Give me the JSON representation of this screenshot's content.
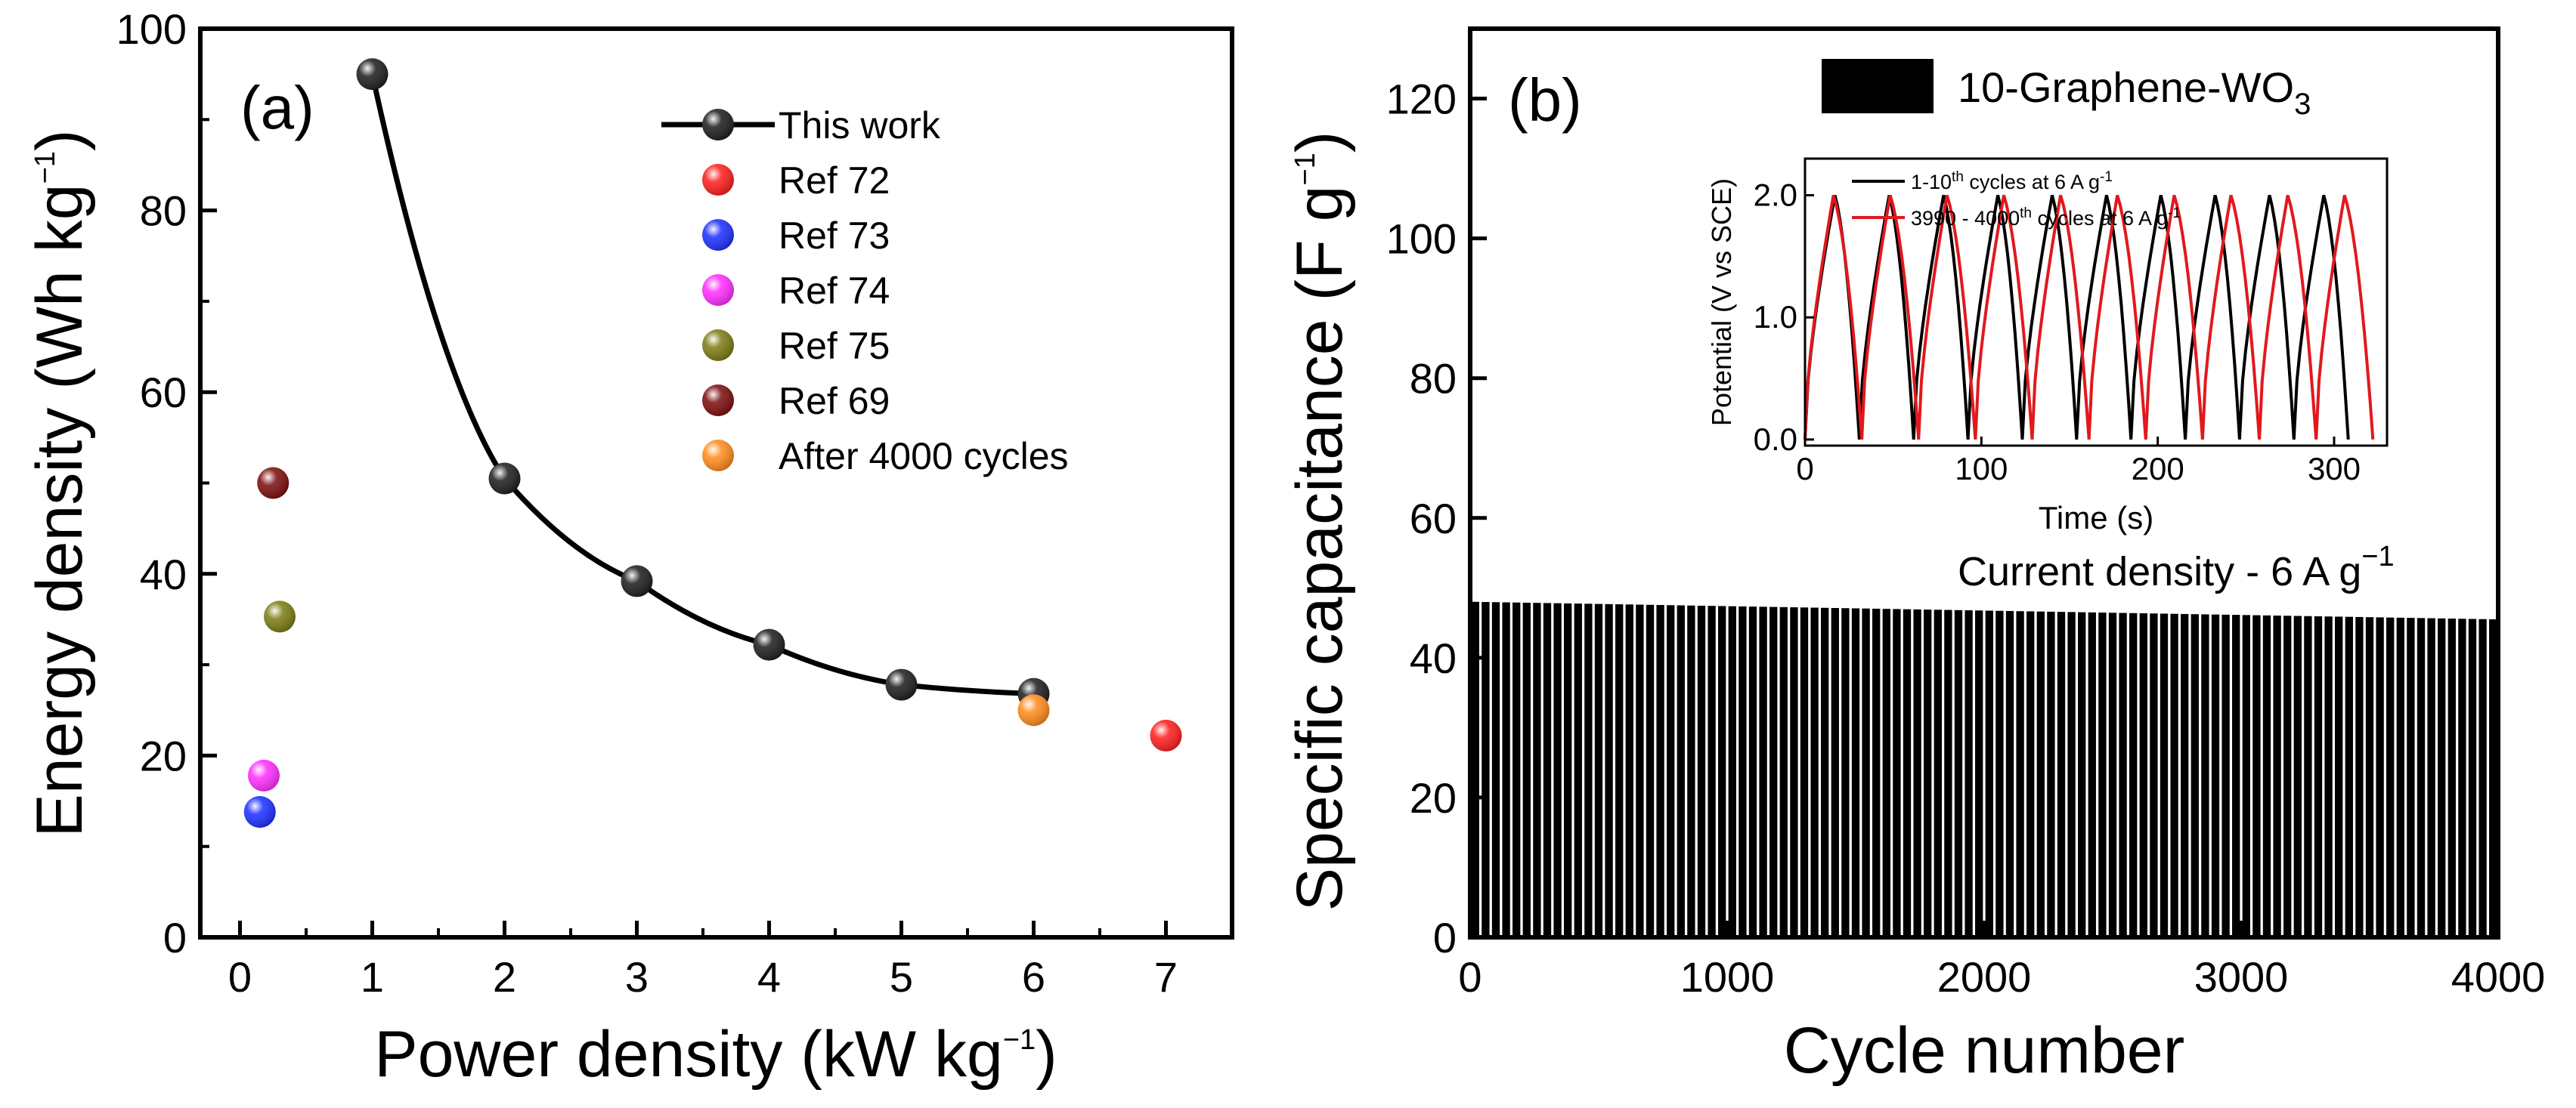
{
  "chart_data": [
    {
      "type": "scatter",
      "panel_label": "(a)",
      "xlabel": "Power density (kW kg",
      "xlabel_sup": "−1",
      "xlabel_end": ")",
      "ylabel": "Energy density (Wh kg",
      "ylabel_sup": "−1",
      "ylabel_end": ")",
      "xlim": [
        -0.3,
        7.5
      ],
      "ylim": [
        0,
        100
      ],
      "xticks": [
        "0",
        "1",
        "2",
        "3",
        "4",
        "5",
        "6",
        "7"
      ],
      "yticks": [
        "0",
        "20",
        "40",
        "60",
        "80",
        "100"
      ],
      "legend_position": "top-right",
      "series": [
        {
          "name": "This work",
          "color": "#1a1a1a",
          "line": true,
          "x": [
            1,
            2,
            3,
            4,
            5,
            6
          ],
          "y": [
            95,
            50.5,
            39.2,
            32.2,
            27.8,
            26.8
          ]
        },
        {
          "name": "Ref 72",
          "color": "#ff1a1a",
          "x": [
            7
          ],
          "y": [
            22.2
          ]
        },
        {
          "name": "Ref 73",
          "color": "#1a2cff",
          "x": [
            0.15
          ],
          "y": [
            13.8
          ]
        },
        {
          "name": "Ref 74",
          "color": "#ff2aff",
          "x": [
            0.18
          ],
          "y": [
            17.8
          ]
        },
        {
          "name": "Ref 75",
          "color": "#7a7a10",
          "x": [
            0.3
          ],
          "y": [
            35.3
          ]
        },
        {
          "name": "Ref 69",
          "color": "#7a0a0a",
          "x": [
            0.25
          ],
          "y": [
            50
          ]
        },
        {
          "name": "After 4000 cycles",
          "color": "#ff8a1a",
          "x": [
            6
          ],
          "y": [
            25
          ]
        }
      ]
    },
    {
      "type": "bar",
      "panel_label": "(b)",
      "xlabel": "Cycle number",
      "ylabel": "Specific capacitance (F g",
      "ylabel_sup": "−1",
      "ylabel_end": ")",
      "xlim": [
        0,
        4000
      ],
      "ylim": [
        0,
        130
      ],
      "xticks": [
        "0",
        "1000",
        "2000",
        "3000",
        "4000"
      ],
      "yticks": [
        "0",
        "20",
        "40",
        "60",
        "80",
        "100",
        "120"
      ],
      "legend_label": "10-Graphene-WO",
      "legend_sub": "3",
      "annotation": "Current density - 6 A g",
      "annotation_sup": "−1",
      "bar_count": 100,
      "bar_color": "#000000",
      "values_start": 48,
      "values_end": 45.5,
      "inset": {
        "type": "line",
        "xlabel": "Time (s)",
        "ylabel": "Potential (V vs SCE)",
        "xlim": [
          0,
          330
        ],
        "ylim": [
          -0.05,
          2.3
        ],
        "xticks": [
          "0",
          "100",
          "200",
          "300"
        ],
        "yticks": [
          "0.0",
          "1.0",
          "2.0"
        ],
        "series": [
          {
            "name_pre": "1-10",
            "name_sup": "th",
            "name_post": " cycles at 6 A g",
            "name_sup2": "-1",
            "color": "#000000",
            "cycles": 10,
            "period": 30.8,
            "peak_frac": 0.55,
            "offset": 0
          },
          {
            "name_pre": "3990 - 4000",
            "name_sup": "th",
            "name_post": " cycles at 6 A g",
            "name_sup2": "-1",
            "color": "#e0191e",
            "cycles": 10,
            "period": 32.2,
            "peak_frac": 0.5,
            "offset": 0
          }
        ],
        "vmax": 2.0
      }
    }
  ]
}
